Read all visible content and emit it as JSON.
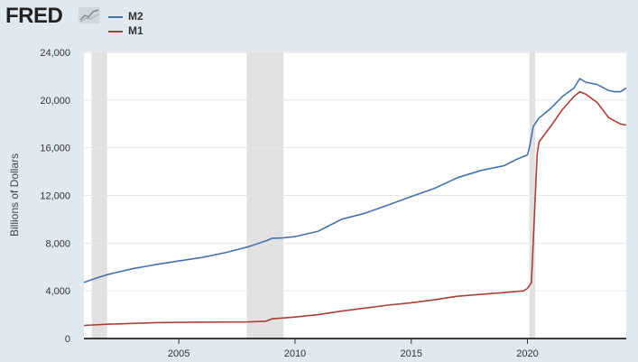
{
  "header": {
    "logo_text": "FRED",
    "logo_icon": "trend-line-icon"
  },
  "chart_data": {
    "type": "line",
    "ylabel": "Billions of Dollars",
    "ylim": [
      0,
      24000
    ],
    "xlim": [
      2000.917,
      2024.25
    ],
    "y_ticks": [
      {
        "value": 0,
        "label": "0"
      },
      {
        "value": 4000,
        "label": "4,000"
      },
      {
        "value": 8000,
        "label": "8,000"
      },
      {
        "value": 12000,
        "label": "12,000"
      },
      {
        "value": 16000,
        "label": "16,000"
      },
      {
        "value": 20000,
        "label": "20,000"
      },
      {
        "value": 24000,
        "label": "24,000"
      }
    ],
    "x_ticks": [
      {
        "value": 2005,
        "label": "2005"
      },
      {
        "value": 2010,
        "label": "2010"
      },
      {
        "value": 2015,
        "label": "2015"
      },
      {
        "value": 2020,
        "label": "2020"
      }
    ],
    "recessions": [
      {
        "start": 2001.25,
        "end": 2001.917
      },
      {
        "start": 2007.917,
        "end": 2009.5
      },
      {
        "start": 2020.083,
        "end": 2020.333
      }
    ],
    "grid": true,
    "legend": "top-left",
    "series": [
      {
        "name": "M2",
        "color": "#4572a7",
        "x": [
          2000.917,
          2001.5,
          2002,
          2003,
          2004,
          2005,
          2006,
          2007,
          2008,
          2008.75,
          2009,
          2009.5,
          2010,
          2011,
          2011.5,
          2012,
          2013,
          2014,
          2015,
          2016,
          2017,
          2018,
          2019,
          2019.5,
          2020,
          2020.08,
          2020.25,
          2020.5,
          2020.75,
          2021,
          2021.5,
          2022,
          2022.25,
          2022.5,
          2023,
          2023.5,
          2023.75,
          2024,
          2024.25
        ],
        "values": [
          4700,
          5100,
          5400,
          5850,
          6200,
          6500,
          6800,
          7200,
          7700,
          8200,
          8400,
          8450,
          8550,
          9000,
          9500,
          10000,
          10500,
          11200,
          11900,
          12600,
          13500,
          14100,
          14500,
          15000,
          15400,
          16000,
          17800,
          18500,
          18900,
          19300,
          20300,
          21000,
          21800,
          21500,
          21300,
          20800,
          20700,
          20700,
          21000
        ]
      },
      {
        "name": "M1",
        "color": "#a8403a",
        "x": [
          2000.917,
          2002,
          2004,
          2006,
          2008,
          2008.75,
          2009,
          2010,
          2011,
          2012,
          2013,
          2014,
          2015,
          2016,
          2017,
          2018,
          2019,
          2019.83,
          2020,
          2020.17,
          2020.3,
          2020.42,
          2020.5,
          2021,
          2021.5,
          2022,
          2022.25,
          2022.5,
          2023,
          2023.5,
          2024,
          2024.25
        ],
        "values": [
          1100,
          1200,
          1330,
          1380,
          1390,
          1450,
          1650,
          1800,
          2000,
          2300,
          2550,
          2800,
          3000,
          3250,
          3550,
          3700,
          3850,
          4000,
          4200,
          4700,
          10500,
          15500,
          16500,
          17800,
          19200,
          20300,
          20700,
          20500,
          19800,
          18500,
          18000,
          17900
        ]
      }
    ]
  }
}
